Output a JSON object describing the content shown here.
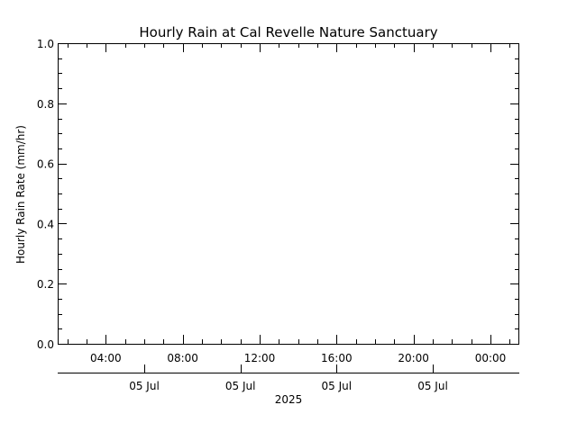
{
  "chart_data": {
    "type": "line",
    "title": "Hourly Rain at Cal Revelle Nature Sanctuary",
    "ylabel": "Hourly Rain Rate (mm/hr)",
    "xlabel": "2025",
    "ylim": [
      0.0,
      1.0
    ],
    "y_ticks": [
      "0.0",
      "0.2",
      "0.4",
      "0.6",
      "0.8",
      "1.0"
    ],
    "y_tick_values": [
      0.0,
      0.2,
      0.4,
      0.6,
      0.8,
      1.0
    ],
    "x_range_hours": [
      1.5,
      25.5
    ],
    "x_time_ticks": [
      "04:00",
      "08:00",
      "12:00",
      "16:00",
      "20:00",
      "00:00"
    ],
    "x_time_tick_hours": [
      4,
      8,
      12,
      16,
      20,
      24
    ],
    "x_date_ticks": [
      "05 Jul",
      "05 Jul",
      "05 Jul",
      "05 Jul"
    ],
    "x_date_tick_hours": [
      6,
      11,
      16,
      21
    ],
    "grid": false,
    "series": [
      {
        "x": [],
        "values": []
      }
    ]
  }
}
